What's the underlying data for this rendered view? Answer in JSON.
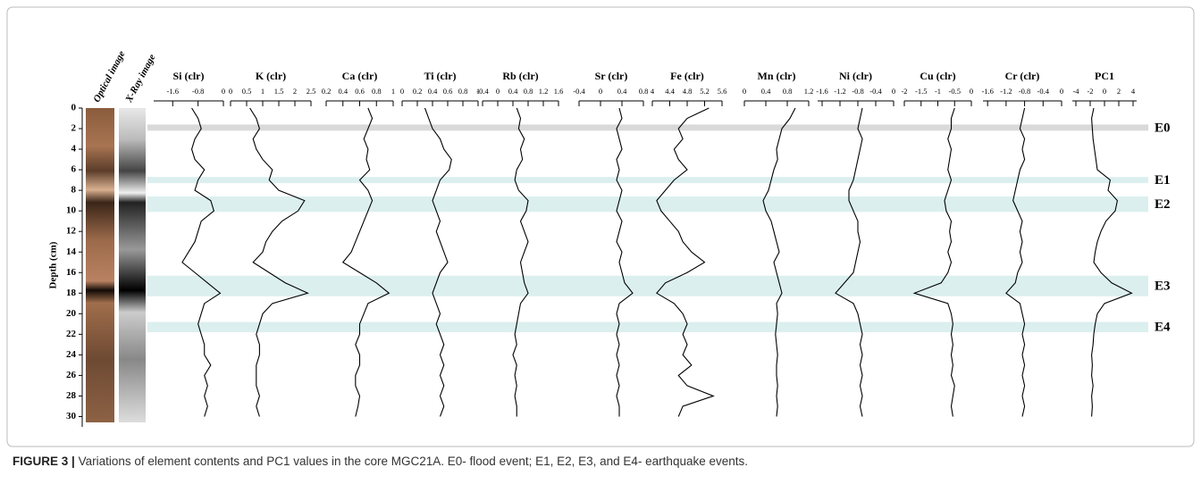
{
  "depth_axis": {
    "label": "Depth (cm)",
    "ylim": [
      0,
      31
    ],
    "yticks": [
      0,
      2,
      4,
      6,
      8,
      10,
      12,
      14,
      16,
      18,
      20,
      22,
      24,
      26,
      28,
      30
    ]
  },
  "images": [
    "Optical image",
    "X-Ray image"
  ],
  "depths": [
    0,
    1,
    2,
    3,
    4,
    5,
    6,
    7,
    8,
    9,
    10,
    11,
    12,
    13,
    14,
    15,
    16,
    17,
    18,
    19,
    20,
    21,
    22,
    23,
    24,
    25,
    26,
    27,
    28,
    29,
    30
  ],
  "events": [
    {
      "label": "E0",
      "from": 1.6,
      "to": 2.2,
      "color": "#d9d9d9"
    },
    {
      "label": "E1",
      "from": 6.7,
      "to": 7.3,
      "color": "#dcefef"
    },
    {
      "label": "E2",
      "from": 8.6,
      "to": 10.1,
      "color": "#dcefef"
    },
    {
      "label": "E3",
      "from": 16.3,
      "to": 18.3,
      "color": "#dcefef"
    },
    {
      "label": "E4",
      "from": 20.8,
      "to": 21.8,
      "color": "#dcefef"
    }
  ],
  "chart_data": [
    {
      "type": "line",
      "title": "Si (clr)",
      "xlim": [
        -2.2,
        0
      ],
      "xticks": [
        -1.6,
        -0.8,
        0
      ],
      "color": "#000000",
      "values": [
        -1.0,
        -0.8,
        -0.7,
        -0.9,
        -1.0,
        -0.9,
        -0.6,
        -0.8,
        -0.9,
        -0.4,
        -0.3,
        -0.7,
        -0.8,
        -0.9,
        -1.1,
        -1.3,
        -0.9,
        -0.5,
        -0.1,
        -0.6,
        -0.7,
        -0.8,
        -0.7,
        -0.6,
        -0.6,
        -0.4,
        -0.6,
        -0.5,
        -0.6,
        -0.5,
        -0.6
      ]
    },
    {
      "type": "line",
      "title": "K (clr)",
      "xlim": [
        0,
        2.5
      ],
      "xticks": [
        0,
        0.5,
        1,
        1.5,
        2,
        2.5
      ],
      "color": "#000000",
      "values": [
        0.6,
        0.8,
        0.9,
        0.7,
        0.8,
        1.0,
        1.3,
        1.2,
        1.5,
        2.3,
        2.1,
        1.6,
        1.3,
        1.1,
        1.0,
        0.7,
        1.2,
        1.7,
        2.4,
        1.3,
        1.0,
        0.9,
        0.8,
        0.9,
        0.9,
        0.8,
        0.8,
        0.8,
        0.9,
        0.8,
        0.9
      ]
    },
    {
      "type": "line",
      "title": "Ca (clr)",
      "xlim": [
        0.2,
        1
      ],
      "xticks": [
        0.2,
        0.4,
        0.6,
        0.8,
        1
      ],
      "color": "#000000",
      "values": [
        0.7,
        0.75,
        0.7,
        0.65,
        0.7,
        0.68,
        0.72,
        0.6,
        0.7,
        0.75,
        0.7,
        0.65,
        0.6,
        0.55,
        0.5,
        0.4,
        0.6,
        0.8,
        0.95,
        0.7,
        0.65,
        0.6,
        0.6,
        0.55,
        0.6,
        0.6,
        0.55,
        0.55,
        0.6,
        0.58,
        0.55
      ]
    },
    {
      "type": "line",
      "title": "Ti (clr)",
      "xlim": [
        0,
        1
      ],
      "xticks": [
        0,
        0.2,
        0.4,
        0.6,
        0.8,
        1
      ],
      "color": "#000000",
      "values": [
        0.3,
        0.35,
        0.4,
        0.5,
        0.55,
        0.65,
        0.62,
        0.5,
        0.45,
        0.4,
        0.45,
        0.5,
        0.45,
        0.5,
        0.55,
        0.6,
        0.5,
        0.45,
        0.4,
        0.45,
        0.5,
        0.45,
        0.5,
        0.55,
        0.5,
        0.55,
        0.5,
        0.55,
        0.5,
        0.55,
        0.5
      ]
    },
    {
      "type": "line",
      "title": "Rb (clr)",
      "xlim": [
        -0.4,
        1.6
      ],
      "xticks": [
        -0.4,
        0,
        0.4,
        0.8,
        1.2,
        1.6
      ],
      "color": "#000000",
      "values": [
        0.5,
        0.6,
        0.55,
        0.7,
        0.6,
        0.65,
        0.5,
        0.45,
        0.55,
        0.8,
        0.75,
        0.6,
        0.7,
        0.8,
        0.7,
        0.6,
        0.65,
        0.7,
        0.8,
        0.6,
        0.55,
        0.5,
        0.45,
        0.5,
        0.4,
        0.5,
        0.45,
        0.5,
        0.45,
        0.5,
        0.5
      ]
    },
    {
      "type": "line",
      "title": "Sr (clr)",
      "xlim": [
        -0.4,
        0.8
      ],
      "xticks": [
        -0.4,
        0,
        0.4,
        0.8
      ],
      "color": "#000000",
      "values": [
        0.35,
        0.4,
        0.3,
        0.35,
        0.4,
        0.3,
        0.35,
        0.3,
        0.4,
        0.35,
        0.3,
        0.4,
        0.35,
        0.3,
        0.4,
        0.35,
        0.4,
        0.45,
        0.6,
        0.35,
        0.3,
        0.35,
        0.3,
        0.35,
        0.3,
        0.35,
        0.3,
        0.35,
        0.3,
        0.35,
        0.35
      ]
    },
    {
      "type": "line",
      "title": "Fe (clr)",
      "xlim": [
        4,
        5.6
      ],
      "xticks": [
        4,
        4.4,
        4.8,
        5.2,
        5.6
      ],
      "color": "#000000",
      "values": [
        5.3,
        4.8,
        4.6,
        4.7,
        4.5,
        4.6,
        4.8,
        4.5,
        4.3,
        4.1,
        4.2,
        4.4,
        4.6,
        4.7,
        4.9,
        5.2,
        4.8,
        4.3,
        4.1,
        4.5,
        4.7,
        4.8,
        4.7,
        4.8,
        4.7,
        4.9,
        4.6,
        4.8,
        5.4,
        4.7,
        4.6
      ]
    },
    {
      "type": "line",
      "title": "Mn (clr)",
      "xlim": [
        0,
        1.2
      ],
      "xticks": [
        0,
        0.4,
        0.8,
        1.2
      ],
      "color": "#000000",
      "values": [
        0.95,
        0.85,
        0.7,
        0.65,
        0.6,
        0.62,
        0.55,
        0.5,
        0.45,
        0.35,
        0.4,
        0.5,
        0.55,
        0.6,
        0.65,
        0.55,
        0.6,
        0.65,
        0.7,
        0.6,
        0.62,
        0.6,
        0.58,
        0.6,
        0.62,
        0.6,
        0.6,
        0.62,
        0.6,
        0.62,
        0.6
      ]
    },
    {
      "type": "line",
      "title": "Ni (clr)",
      "xlim": [
        -1.7,
        0
      ],
      "xticks": [
        -1.6,
        -1.2,
        -0.8,
        -0.4,
        0
      ],
      "color": "#000000",
      "values": [
        -0.7,
        -0.75,
        -0.8,
        -0.7,
        -0.75,
        -0.8,
        -0.85,
        -0.9,
        -1.0,
        -1.0,
        -0.9,
        -0.8,
        -0.8,
        -0.75,
        -0.8,
        -0.85,
        -0.9,
        -1.1,
        -1.3,
        -0.9,
        -0.8,
        -0.75,
        -0.7,
        -0.75,
        -0.7,
        -0.75,
        -0.7,
        -0.75,
        -0.7,
        -0.75,
        -0.7
      ]
    },
    {
      "type": "line",
      "title": "Cu (clr)",
      "xlim": [
        -2,
        0
      ],
      "xticks": [
        -2,
        -1.5,
        -1,
        -0.5,
        0
      ],
      "color": "#000000",
      "values": [
        -0.5,
        -0.6,
        -0.6,
        -0.7,
        -0.6,
        -0.65,
        -0.7,
        -0.6,
        -0.7,
        -0.8,
        -0.75,
        -0.6,
        -0.65,
        -0.6,
        -0.7,
        -0.6,
        -0.7,
        -0.9,
        -1.7,
        -0.7,
        -0.6,
        -0.55,
        -0.6,
        -0.55,
        -0.6,
        -0.55,
        -0.6,
        -0.5,
        -0.55,
        -0.6,
        -0.55
      ]
    },
    {
      "type": "line",
      "title": "Cr (clr)",
      "xlim": [
        -1.7,
        0
      ],
      "xticks": [
        -1.6,
        -1.2,
        -0.8,
        -0.4,
        0
      ],
      "color": "#000000",
      "values": [
        -0.8,
        -0.85,
        -0.9,
        -0.8,
        -0.85,
        -0.8,
        -0.9,
        -0.95,
        -1.0,
        -1.05,
        -0.95,
        -0.85,
        -0.9,
        -0.85,
        -0.9,
        -0.85,
        -0.95,
        -1.0,
        -1.2,
        -0.9,
        -0.85,
        -0.8,
        -0.85,
        -0.8,
        -0.85,
        -0.8,
        -0.85,
        -0.8,
        -0.85,
        -0.8,
        -0.85
      ]
    },
    {
      "type": "line",
      "title": "PC1",
      "xlim": [
        -4.5,
        4.5
      ],
      "xticks": [
        -4,
        -2,
        0,
        2,
        4
      ],
      "color": "#000000",
      "values": [
        -1.5,
        -1.8,
        -1.7,
        -1.6,
        -1.4,
        -1.2,
        -1.0,
        0.8,
        0.5,
        1.8,
        1.5,
        0.2,
        -0.5,
        -1.0,
        -1.3,
        -1.5,
        -0.5,
        1.0,
        3.8,
        0.0,
        -1.0,
        -1.3,
        -1.5,
        -1.6,
        -1.8,
        -1.7,
        -1.8,
        -1.6,
        -1.8,
        -1.7,
        -1.8
      ]
    }
  ],
  "caption": {
    "label": "FIGURE 3 |",
    "text": "Variations of element contents and PC1 values in the core MGC21A. E0- flood event; E1, E2, E3, and E4- earthquake events."
  }
}
